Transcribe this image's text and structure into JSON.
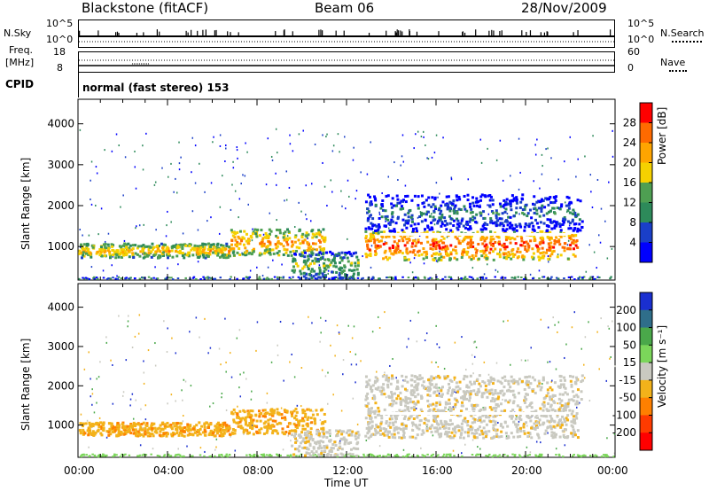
{
  "header": {
    "station": "Blackstone (fitACF)",
    "beam": "Beam 06",
    "date": "28/Nov/2009"
  },
  "strip": {
    "nsky_label": "N.Sky",
    "nsky_top": "10^5",
    "nsky_bot": "10^0",
    "nsearch_label": "N.Search",
    "nsearch_top": "10^5",
    "nsearch_bot": "10^0",
    "freq_label_1": "Freq.",
    "freq_label_2": "[MHz]",
    "freq_top": "18",
    "freq_bot": "8",
    "nave_label": "Nave",
    "nave_top": "60",
    "nave_bot": "0",
    "cpid_label": "CPID",
    "cpid_value": "normal (fast stereo) 153"
  },
  "axes": {
    "ylabel": "Slant Range [km]",
    "yticks": [
      "4000",
      "3000",
      "2000",
      "1000"
    ],
    "xticks": [
      "00:00",
      "04:00",
      "08:00",
      "12:00",
      "16:00",
      "20:00",
      "00:00"
    ],
    "xlabel": "Time UT"
  },
  "chart_data": [
    {
      "type": "heatmap",
      "panel": "power",
      "ylabel": "Slant Range [km]",
      "xlabel": "Time UT",
      "x_ticks": [
        "00:00",
        "04:00",
        "08:00",
        "12:00",
        "16:00",
        "20:00",
        "00:00"
      ],
      "y_ticks": [
        1000,
        2000,
        3000,
        4000
      ],
      "ylim": [
        180,
        4600
      ],
      "colorbar": {
        "label": "Power [dB]",
        "ticks": [
          "28",
          "24",
          "20",
          "16",
          "12",
          "8",
          "4"
        ],
        "colors": [
          "#ff0000",
          "#ff6a00",
          "#ffa500",
          "#f5d100",
          "#4e9f52",
          "#2d8a5a",
          "#1a3fc8",
          "#0000ff"
        ]
      },
      "echo_bands": [
        {
          "t_start_h": 0.0,
          "t_end_h": 6.8,
          "range_km": [
            750,
            1100
          ],
          "power_db": 20
        },
        {
          "t_start_h": 6.8,
          "t_end_h": 11.0,
          "range_km": [
            800,
            1450
          ],
          "power_db": 22
        },
        {
          "t_start_h": 9.5,
          "t_end_h": 12.5,
          "range_km": [
            250,
            900
          ],
          "power_db": 14
        },
        {
          "t_start_h": 12.8,
          "t_end_h": 22.3,
          "range_km": [
            700,
            1400
          ],
          "power_db": 26
        },
        {
          "t_start_h": 12.8,
          "t_end_h": 22.5,
          "range_km": [
            1400,
            2300
          ],
          "power_db": 8
        }
      ]
    },
    {
      "type": "heatmap",
      "panel": "velocity",
      "ylabel": "Slant Range [km]",
      "xlabel": "Time UT",
      "x_ticks": [
        "00:00",
        "04:00",
        "08:00",
        "12:00",
        "16:00",
        "20:00",
        "00:00"
      ],
      "y_ticks": [
        1000,
        2000,
        3000,
        4000
      ],
      "ylim": [
        180,
        4600
      ],
      "colorbar": {
        "label": "Velocity [m s⁻¹]",
        "ticks": [
          "200",
          "100",
          "50",
          "15",
          "-15",
          "-50",
          "-100",
          "-200"
        ],
        "colors": [
          "#1a2fd0",
          "#2f6e8a",
          "#4aa84a",
          "#7bd65a",
          "#c9c9c0",
          "#f3b21a",
          "#ff8000",
          "#ff3b00",
          "#ff0000"
        ]
      },
      "echo_bands": [
        {
          "t_start_h": 0.0,
          "t_end_h": 6.8,
          "range_km": [
            750,
            1100
          ],
          "velocity": -40
        },
        {
          "t_start_h": 6.8,
          "t_end_h": 11.0,
          "range_km": [
            800,
            1450
          ],
          "velocity": -60
        },
        {
          "t_start_h": 9.5,
          "t_end_h": 12.5,
          "range_km": [
            250,
            900
          ],
          "velocity": 0
        },
        {
          "t_start_h": 12.8,
          "t_end_h": 22.3,
          "range_km": [
            700,
            1400
          ],
          "velocity": 0
        },
        {
          "t_start_h": 12.8,
          "t_end_h": 22.5,
          "range_km": [
            1400,
            2300
          ],
          "velocity": 0
        }
      ]
    }
  ]
}
